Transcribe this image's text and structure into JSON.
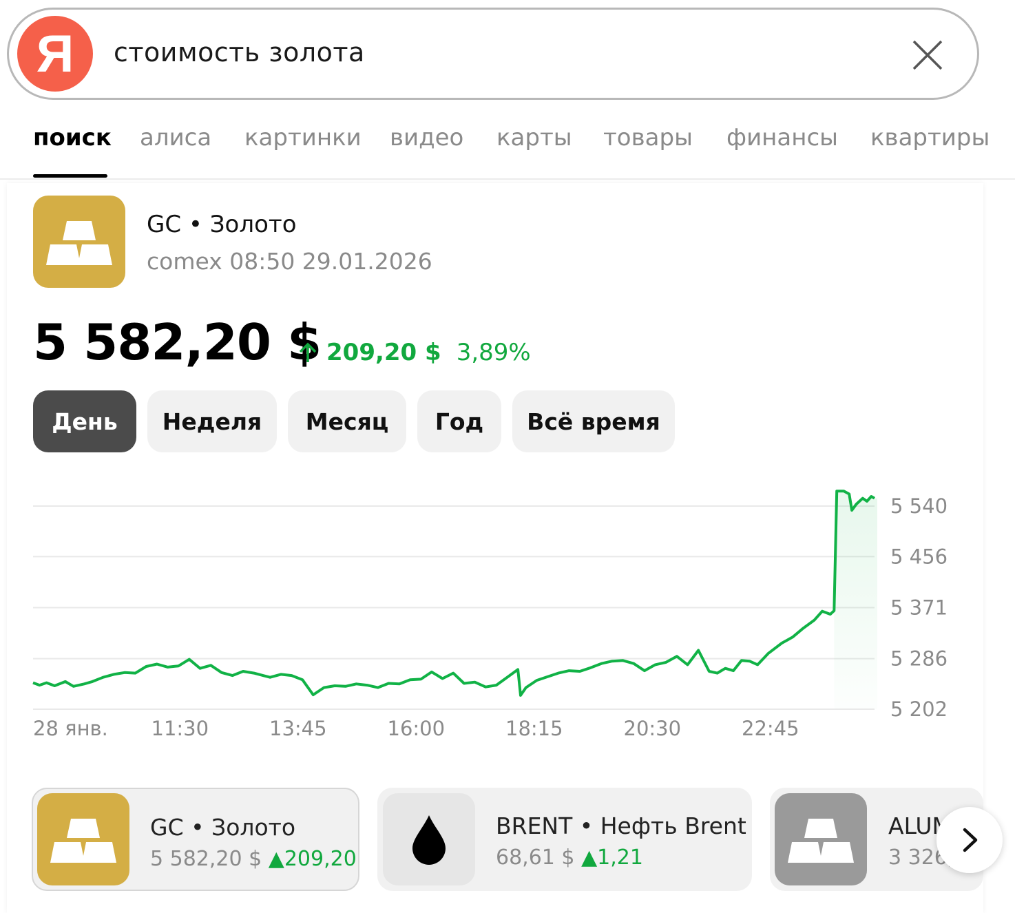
{
  "search": {
    "query": "стоимость золота",
    "logo_letter": "Я"
  },
  "tabs": [
    {
      "label": "поиск",
      "active": true
    },
    {
      "label": "алиса"
    },
    {
      "label": "картинки"
    },
    {
      "label": "видео"
    },
    {
      "label": "карты"
    },
    {
      "label": "товары"
    },
    {
      "label": "финансы"
    },
    {
      "label": "квартиры"
    }
  ],
  "asset": {
    "ticker_title": "GC • Золото",
    "subtitle": "comex 08:50 29.01.2026",
    "price": "5 582,20 $",
    "change_abs": "209,20 $",
    "change_pct": "3,89%",
    "icon": "gold-bars-icon",
    "accent": "#d4ae45",
    "gain_color": "#11a83e"
  },
  "periods": [
    {
      "label": "День",
      "active": true
    },
    {
      "label": "Неделя"
    },
    {
      "label": "Месяц"
    },
    {
      "label": "Год"
    },
    {
      "label": "Всё время"
    }
  ],
  "chart_data": {
    "type": "area",
    "title": "",
    "xlabel": "",
    "ylabel": "",
    "x_tick_labels": [
      "28 янв.",
      "11:30",
      "13:45",
      "16:00",
      "18:15",
      "20:30",
      "22:45"
    ],
    "y_tick_labels": [
      "5 540",
      "5 456",
      "5 371",
      "5 286",
      "5 202"
    ],
    "y_ticks": [
      5540,
      5456,
      5371,
      5286,
      5202
    ],
    "ylim": [
      5195,
      5560
    ],
    "grid": true,
    "color": "#11b246",
    "x_unit": "minutes since 28 янв. 09:15 (tick labels spaced 135 min)",
    "series": [
      {
        "values": [
          [
            0,
            5246
          ],
          [
            12,
            5242
          ],
          [
            25,
            5246
          ],
          [
            40,
            5241
          ],
          [
            60,
            5248
          ],
          [
            75,
            5240
          ],
          [
            95,
            5244
          ],
          [
            110,
            5248
          ],
          [
            130,
            5255
          ],
          [
            150,
            5260
          ],
          [
            170,
            5263
          ],
          [
            190,
            5262
          ],
          [
            210,
            5273
          ],
          [
            230,
            5277
          ],
          [
            250,
            5272
          ],
          [
            270,
            5274
          ],
          [
            290,
            5285
          ],
          [
            310,
            5270
          ],
          [
            330,
            5275
          ],
          [
            350,
            5263
          ],
          [
            370,
            5258
          ],
          [
            390,
            5265
          ],
          [
            410,
            5262
          ],
          [
            440,
            5255
          ],
          [
            460,
            5260
          ],
          [
            480,
            5258
          ],
          [
            500,
            5251
          ],
          [
            520,
            5226
          ],
          [
            540,
            5238
          ],
          [
            560,
            5241
          ],
          [
            580,
            5240
          ],
          [
            600,
            5244
          ],
          [
            620,
            5242
          ],
          [
            640,
            5238
          ],
          [
            660,
            5245
          ],
          [
            680,
            5244
          ],
          [
            700,
            5251
          ],
          [
            720,
            5252
          ],
          [
            740,
            5264
          ],
          [
            760,
            5253
          ],
          [
            780,
            5262
          ],
          [
            800,
            5245
          ],
          [
            820,
            5247
          ],
          [
            840,
            5239
          ],
          [
            860,
            5242
          ],
          [
            880,
            5255
          ],
          [
            900,
            5268
          ],
          [
            905,
            5225
          ],
          [
            915,
            5238
          ],
          [
            935,
            5250
          ],
          [
            955,
            5256
          ],
          [
            975,
            5262
          ],
          [
            995,
            5266
          ],
          [
            1015,
            5265
          ],
          [
            1035,
            5271
          ],
          [
            1055,
            5278
          ],
          [
            1075,
            5282
          ],
          [
            1095,
            5283
          ],
          [
            1115,
            5278
          ],
          [
            1135,
            5266
          ],
          [
            1155,
            5276
          ],
          [
            1175,
            5280
          ],
          [
            1195,
            5290
          ],
          [
            1215,
            5276
          ],
          [
            1235,
            5300
          ],
          [
            1255,
            5265
          ],
          [
            1270,
            5262
          ],
          [
            1285,
            5270
          ],
          [
            1300,
            5266
          ],
          [
            1315,
            5283
          ],
          [
            1330,
            5282
          ],
          [
            1345,
            5276
          ],
          [
            1365,
            5295
          ],
          [
            1390,
            5312
          ],
          [
            1410,
            5322
          ],
          [
            1430,
            5337
          ],
          [
            1450,
            5350
          ],
          [
            1465,
            5365
          ],
          [
            1480,
            5360
          ],
          [
            1487,
            5366
          ],
          [
            1492,
            5565
          ],
          [
            1505,
            5565
          ],
          [
            1515,
            5560
          ],
          [
            1520,
            5533
          ],
          [
            1528,
            5543
          ],
          [
            1540,
            5553
          ],
          [
            1548,
            5548
          ],
          [
            1556,
            5556
          ],
          [
            1562,
            5553
          ]
        ]
      }
    ]
  },
  "related": [
    {
      "title": "GC • Золото",
      "price": "5 582,20 $",
      "change": "209,20",
      "icon": "gold-bars-icon",
      "bg": "#d4ae45"
    },
    {
      "title": "BRENT • Нефть Brent",
      "price": "68,61 $",
      "change": "1,21",
      "icon": "oil-drop-icon",
      "bg": "#e6e6e6"
    },
    {
      "title": "ALUM",
      "price": "3 326,",
      "change": "",
      "icon": "metal-bars-icon",
      "bg": "#9a9a9a"
    }
  ],
  "related_up_glyph": "▲"
}
